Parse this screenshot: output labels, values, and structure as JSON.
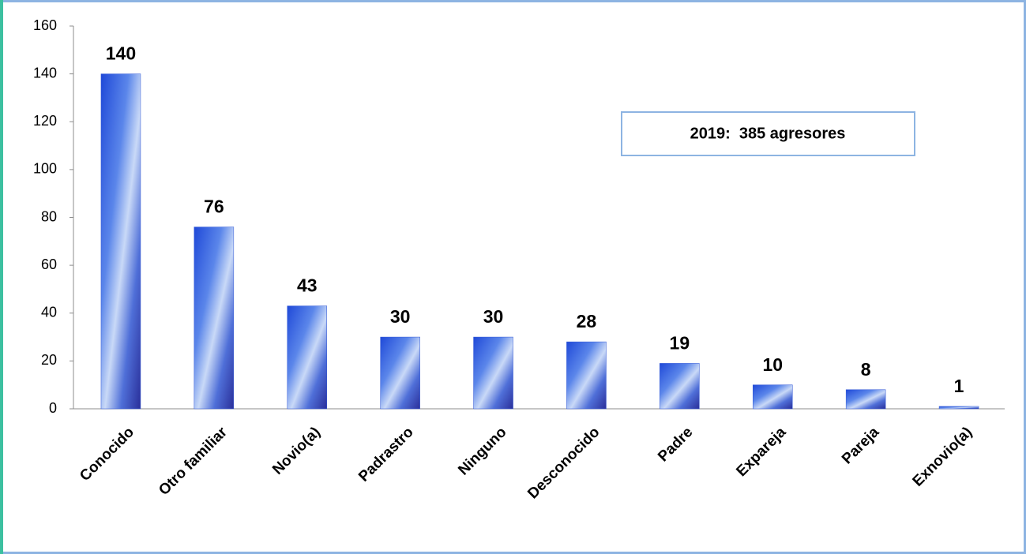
{
  "chart_data": {
    "type": "bar",
    "categories": [
      "Conocido",
      "Otro familiar",
      "Novio(a)",
      "Padrastro",
      "Ninguno",
      "Desconocido",
      "Padre",
      "Expareja",
      "Pareja",
      "Exnovio(a)"
    ],
    "values": [
      140,
      76,
      43,
      30,
      30,
      28,
      19,
      10,
      8,
      1
    ],
    "color": "#2f55d4",
    "ylim": [
      0,
      160
    ],
    "yticks": [
      0,
      20,
      40,
      60,
      80,
      100,
      120,
      140,
      160
    ],
    "grid": false,
    "annotation": "2019:  385 agresores"
  }
}
